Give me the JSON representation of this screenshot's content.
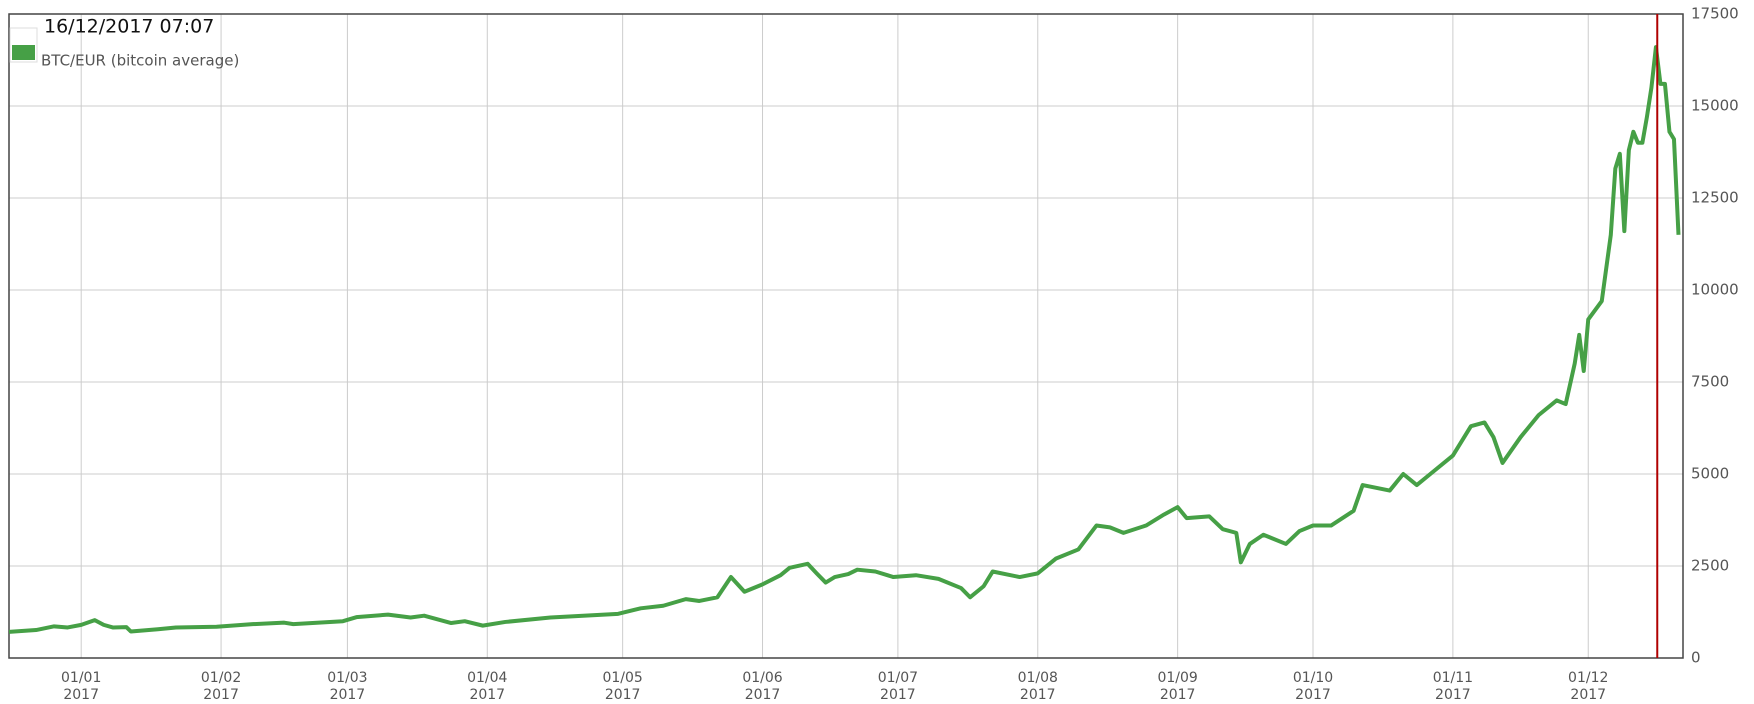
{
  "chart_data": {
    "type": "line",
    "annotation": "16/12/2017 07:07",
    "marker": {
      "x": "2017-12-16T07:07",
      "color": "#b00000"
    },
    "x": [
      "2016-12-16",
      "2016-12-22",
      "2016-12-26",
      "2016-12-29",
      "2017-01-01",
      "2017-01-04",
      "2017-01-06",
      "2017-01-08",
      "2017-01-11",
      "2017-01-12",
      "2017-01-18",
      "2017-01-22",
      "2017-01-31",
      "2017-02-08",
      "2017-02-15",
      "2017-02-17",
      "2017-02-28",
      "2017-03-03",
      "2017-03-10",
      "2017-03-15",
      "2017-03-18",
      "2017-03-24",
      "2017-03-27",
      "2017-03-31",
      "2017-04-05",
      "2017-04-15",
      "2017-04-30",
      "2017-05-05",
      "2017-05-10",
      "2017-05-15",
      "2017-05-18",
      "2017-05-22",
      "2017-05-25",
      "2017-05-28",
      "2017-06-01",
      "2017-06-05",
      "2017-06-07",
      "2017-06-11",
      "2017-06-13",
      "2017-06-15",
      "2017-06-17",
      "2017-06-20",
      "2017-06-22",
      "2017-06-26",
      "2017-06-30",
      "2017-07-05",
      "2017-07-10",
      "2017-07-15",
      "2017-07-17",
      "2017-07-20",
      "2017-07-22",
      "2017-07-28",
      "2017-08-01",
      "2017-08-05",
      "2017-08-10",
      "2017-08-14",
      "2017-08-17",
      "2017-08-20",
      "2017-08-25",
      "2017-08-29",
      "2017-09-01",
      "2017-09-03",
      "2017-09-08",
      "2017-09-11",
      "2017-09-14",
      "2017-09-15",
      "2017-09-17",
      "2017-09-20",
      "2017-09-25",
      "2017-09-28",
      "2017-10-01",
      "2017-10-05",
      "2017-10-10",
      "2017-10-12",
      "2017-10-18",
      "2017-10-21",
      "2017-10-24",
      "2017-10-27",
      "2017-11-01",
      "2017-11-05",
      "2017-11-08",
      "2017-11-10",
      "2017-11-12",
      "2017-11-16",
      "2017-11-20",
      "2017-11-24",
      "2017-11-26",
      "2017-11-28",
      "2017-11-29",
      "2017-11-30",
      "2017-12-01",
      "2017-12-04",
      "2017-12-06",
      "2017-12-07",
      "2017-12-08",
      "2017-12-09",
      "2017-12-10",
      "2017-12-11",
      "2017-12-12",
      "2017-12-13",
      "2017-12-14",
      "2017-12-15",
      "2017-12-16",
      "2017-12-17",
      "2017-12-18",
      "2017-12-19",
      "2017-12-20",
      "2017-12-21"
    ],
    "series": [
      {
        "name": "BTC/EUR (bitcoin average)",
        "color": "#46a046",
        "values": [
          710,
          760,
          860,
          830,
          900,
          1030,
          900,
          830,
          840,
          720,
          780,
          830,
          850,
          920,
          960,
          920,
          1000,
          1110,
          1180,
          1100,
          1150,
          950,
          1000,
          880,
          980,
          1100,
          1200,
          1350,
          1420,
          1600,
          1550,
          1650,
          2200,
          1800,
          2000,
          2250,
          2450,
          2560,
          2300,
          2050,
          2200,
          2280,
          2400,
          2350,
          2200,
          2250,
          2150,
          1900,
          1650,
          1950,
          2350,
          2200,
          2300,
          2700,
          2950,
          3600,
          3550,
          3400,
          3600,
          3900,
          4100,
          3800,
          3850,
          3500,
          3400,
          2600,
          3100,
          3350,
          3100,
          3450,
          3600,
          3600,
          4000,
          4700,
          4550,
          5000,
          4700,
          5000,
          5500,
          6300,
          6400,
          6000,
          5300,
          6000,
          6600,
          7000,
          6900,
          8000,
          8780,
          7800,
          9200,
          9700,
          11500,
          13300,
          13700,
          11600,
          13800,
          14300,
          14000,
          14000,
          14700,
          15500,
          16600,
          15600,
          15600,
          14300,
          14100,
          11500
        ]
      }
    ],
    "xlim": [
      "2016-12-16",
      "2017-12-22"
    ],
    "xticks": [
      {
        "value": "2017-01-01",
        "label": "01/01\n2017"
      },
      {
        "value": "2017-02-01",
        "label": "01/02\n2017"
      },
      {
        "value": "2017-03-01",
        "label": "01/03\n2017"
      },
      {
        "value": "2017-04-01",
        "label": "01/04\n2017"
      },
      {
        "value": "2017-05-01",
        "label": "01/05\n2017"
      },
      {
        "value": "2017-06-01",
        "label": "01/06\n2017"
      },
      {
        "value": "2017-07-01",
        "label": "01/07\n2017"
      },
      {
        "value": "2017-08-01",
        "label": "01/08\n2017"
      },
      {
        "value": "2017-09-01",
        "label": "01/09\n2017"
      },
      {
        "value": "2017-10-01",
        "label": "01/10\n2017"
      },
      {
        "value": "2017-11-01",
        "label": "01/11\n2017"
      },
      {
        "value": "2017-12-01",
        "label": "01/12\n2017"
      }
    ],
    "ylim": [
      0,
      17500
    ],
    "yticks": [
      0,
      2500,
      5000,
      7500,
      10000,
      12500,
      15000,
      17500
    ],
    "grid": true
  }
}
